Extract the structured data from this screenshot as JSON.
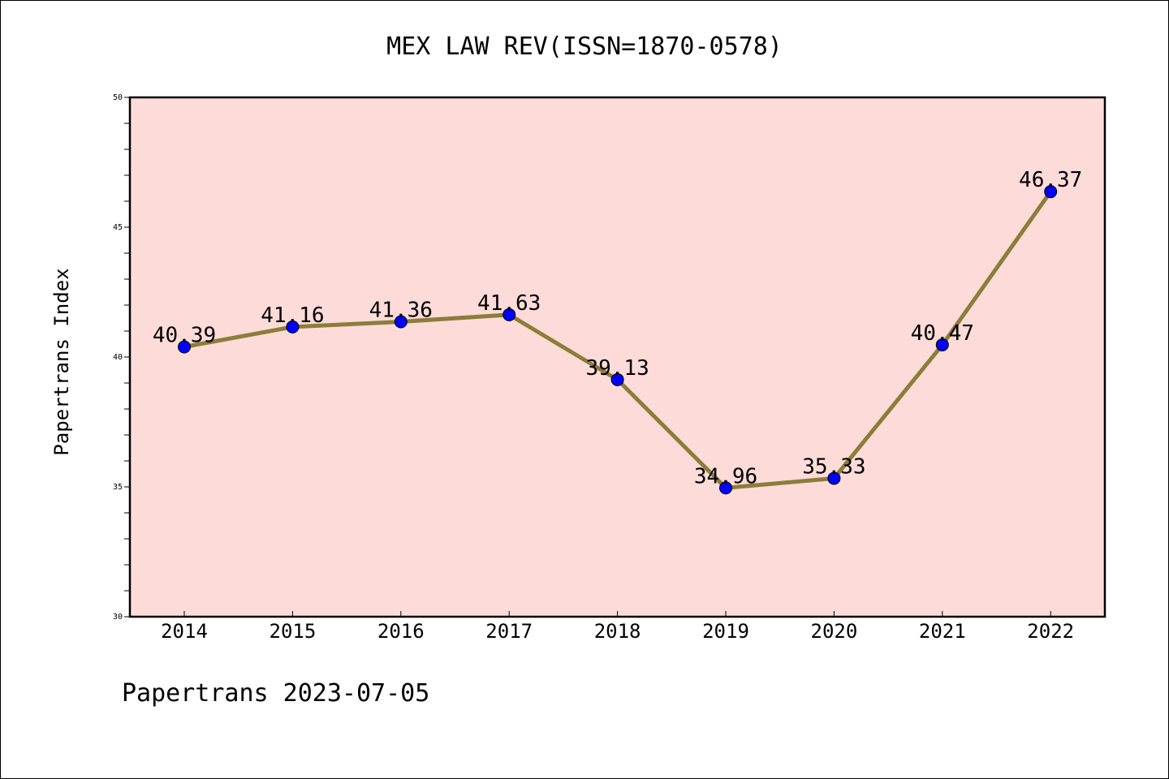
{
  "chart_data": {
    "type": "line",
    "title": "MEX LAW REV(ISSN=1870-0578)",
    "xlabel": "",
    "ylabel": "Papertrans Index",
    "categories": [
      "2014",
      "2015",
      "2016",
      "2017",
      "2018",
      "2019",
      "2020",
      "2021",
      "2022"
    ],
    "series": [
      {
        "values": [
          40.39,
          41.16,
          41.36,
          41.63,
          39.13,
          34.96,
          35.33,
          40.47,
          46.37
        ],
        "labels": [
          "40.39",
          "41.16",
          "41.36",
          "41.63",
          "39.13",
          "34.96",
          "35.33",
          "40.47",
          "46.37"
        ]
      }
    ],
    "ylim": [
      30,
      50
    ],
    "yticks": [
      "30",
      "35",
      "40",
      "45",
      "50"
    ],
    "grid": false,
    "legend": "none",
    "footer": "Papertrans 2023-07-05",
    "colors": {
      "plot_background": "#fddbd8",
      "line": "#8b7d3a",
      "marker": "#0000ff",
      "axis": "#000000"
    }
  }
}
